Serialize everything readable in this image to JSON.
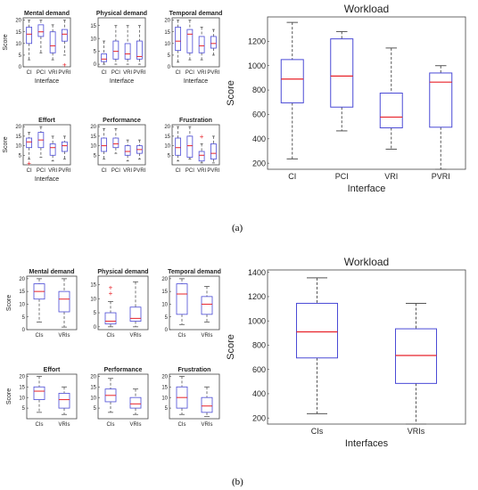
{
  "captions": {
    "a": "(a)",
    "b": "(b)"
  },
  "colors": {
    "box": "#4a4ad6",
    "median": "#e8232a",
    "outlier": "#e8232a",
    "whisker": "#555555",
    "axis": "#444444",
    "text": "#222222"
  },
  "chart_data": [
    {
      "panel": "a",
      "type": "boxplot",
      "title": "Mental demand",
      "categories": [
        "CI",
        "PCI",
        "VRI",
        "PVRI"
      ],
      "xlabel": "Interface",
      "ylabel": "Score",
      "ylim": [
        0,
        21
      ],
      "yticks": [
        0,
        5,
        10,
        15,
        20
      ],
      "boxes": [
        {
          "min": 3,
          "q1": 10,
          "median": 14,
          "q3": 17,
          "max": 20
        },
        {
          "min": 6,
          "q1": 13,
          "median": 15,
          "q3": 18,
          "max": 20
        },
        {
          "min": 3,
          "q1": 6,
          "median": 9,
          "q3": 15,
          "max": 18
        },
        {
          "min": 5,
          "q1": 11,
          "median": 14,
          "q3": 16,
          "max": 20,
          "outliers": [
            1
          ]
        }
      ]
    },
    {
      "panel": "a",
      "type": "boxplot",
      "title": "Physical demand",
      "categories": [
        "CI",
        "PCI",
        "VRI",
        "PVRI"
      ],
      "xlabel": "Interface",
      "ylabel": "",
      "ylim": [
        -1,
        18
      ],
      "yticks": [
        0,
        5,
        10,
        15
      ],
      "boxes": [
        {
          "min": 0,
          "q1": 1,
          "median": 2,
          "q3": 4,
          "max": 9
        },
        {
          "min": 0,
          "q1": 2,
          "median": 5,
          "q3": 9,
          "max": 15
        },
        {
          "min": 0,
          "q1": 2,
          "median": 4,
          "q3": 8,
          "max": 15
        },
        {
          "min": 0,
          "q1": 2,
          "median": 3,
          "q3": 9,
          "max": 15
        }
      ]
    },
    {
      "panel": "a",
      "type": "boxplot",
      "title": "Temporal demand",
      "categories": [
        "CI",
        "PCI",
        "VRI",
        "PVRI"
      ],
      "xlabel": "Interface",
      "ylabel": "",
      "ylim": [
        0,
        21
      ],
      "yticks": [
        0,
        5,
        10,
        15,
        20
      ],
      "boxes": [
        {
          "min": 2,
          "q1": 7,
          "median": 11,
          "q3": 17,
          "max": 20
        },
        {
          "min": 3,
          "q1": 6,
          "median": 14,
          "q3": 16,
          "max": 20
        },
        {
          "min": 3,
          "q1": 6,
          "median": 9,
          "q3": 13,
          "max": 17
        },
        {
          "min": 5,
          "q1": 8,
          "median": 10,
          "q3": 13,
          "max": 16
        }
      ]
    },
    {
      "panel": "a",
      "type": "boxplot",
      "title": "Effort",
      "categories": [
        "CI",
        "PCI",
        "VRI",
        "PVRI"
      ],
      "xlabel": "Interface",
      "ylabel": "Score",
      "ylim": [
        0,
        21
      ],
      "yticks": [
        5,
        10,
        15,
        20
      ],
      "boxes": [
        {
          "min": 3,
          "q1": 9,
          "median": 12,
          "q3": 14,
          "max": 17,
          "outliers": [
            1
          ]
        },
        {
          "min": 4,
          "q1": 9,
          "median": 13,
          "q3": 17,
          "max": 20
        },
        {
          "min": 2,
          "q1": 5,
          "median": 9,
          "q3": 11,
          "max": 15
        },
        {
          "min": 3,
          "q1": 7,
          "median": 10,
          "q3": 12,
          "max": 15
        }
      ]
    },
    {
      "panel": "a",
      "type": "boxplot",
      "title": "Performance",
      "categories": [
        "CI",
        "PCI",
        "VRI",
        "PVRI"
      ],
      "xlabel": "",
      "ylabel": "",
      "ylim": [
        0,
        21
      ],
      "yticks": [
        5,
        10,
        15,
        20
      ],
      "boxes": [
        {
          "min": 3,
          "q1": 7,
          "median": 10,
          "q3": 14,
          "max": 19
        },
        {
          "min": 6,
          "q1": 9,
          "median": 11,
          "q3": 14,
          "max": 19
        },
        {
          "min": 2,
          "q1": 5,
          "median": 7,
          "q3": 10,
          "max": 13
        },
        {
          "min": 3,
          "q1": 6,
          "median": 8,
          "q3": 10,
          "max": 13
        }
      ]
    },
    {
      "panel": "a",
      "type": "boxplot",
      "title": "Frustration",
      "categories": [
        "CI",
        "PCI",
        "VRI",
        "PVRI"
      ],
      "xlabel": "",
      "ylabel": "",
      "ylim": [
        0,
        21
      ],
      "yticks": [
        5,
        10,
        15,
        20
      ],
      "boxes": [
        {
          "min": 2,
          "q1": 5,
          "median": 9,
          "q3": 14,
          "max": 20
        },
        {
          "min": 3,
          "q1": 4,
          "median": 10,
          "q3": 15,
          "max": 20
        },
        {
          "min": 1,
          "q1": 2,
          "median": 5,
          "q3": 7,
          "max": 11,
          "outliers": [
            15
          ]
        },
        {
          "min": 1,
          "q1": 3,
          "median": 6,
          "q3": 11,
          "max": 15
        }
      ]
    },
    {
      "panel": "a",
      "type": "boxplot",
      "title": "Workload",
      "categories": [
        "CI",
        "PCI",
        "VRI",
        "PVRI"
      ],
      "xlabel": "Interface",
      "ylabel": "Score",
      "ylim": [
        150,
        1400
      ],
      "yticks": [
        200,
        400,
        600,
        800,
        1000,
        1200
      ],
      "boxes": [
        {
          "min": 235,
          "q1": 695,
          "median": 890,
          "q3": 1050,
          "max": 1355
        },
        {
          "min": 465,
          "q1": 660,
          "median": 915,
          "q3": 1220,
          "max": 1280
        },
        {
          "min": 315,
          "q1": 490,
          "median": 578,
          "q3": 775,
          "max": 1145
        },
        {
          "min": 150,
          "q1": 495,
          "median": 865,
          "q3": 940,
          "max": 1000
        }
      ]
    },
    {
      "panel": "b",
      "type": "boxplot",
      "title": "Mental demand",
      "categories": [
        "CIs",
        "VRIs"
      ],
      "xlabel": "",
      "ylabel": "Score",
      "ylim": [
        0,
        21
      ],
      "yticks": [
        0,
        5,
        10,
        15,
        20
      ],
      "boxes": [
        {
          "min": 3,
          "q1": 12,
          "median": 15,
          "q3": 18,
          "max": 20
        },
        {
          "min": 1,
          "q1": 7,
          "median": 12,
          "q3": 15,
          "max": 20
        }
      ]
    },
    {
      "panel": "b",
      "type": "boxplot",
      "title": "Physical demand",
      "categories": [
        "CIs",
        "VRIs"
      ],
      "xlabel": "",
      "ylabel": "",
      "ylim": [
        -1,
        18
      ],
      "yticks": [
        0,
        5,
        10,
        15
      ],
      "boxes": [
        {
          "min": 0,
          "q1": 1,
          "median": 2,
          "q3": 5,
          "max": 9,
          "outliers": [
            12,
            14
          ]
        },
        {
          "min": 0,
          "q1": 2,
          "median": 3,
          "q3": 7,
          "max": 16
        }
      ]
    },
    {
      "panel": "b",
      "type": "boxplot",
      "title": "Temporal demand",
      "categories": [
        "CIs",
        "VRIs"
      ],
      "xlabel": "",
      "ylabel": "",
      "ylim": [
        0,
        21
      ],
      "yticks": [
        0,
        5,
        10,
        15,
        20
      ],
      "boxes": [
        {
          "min": 2,
          "q1": 6,
          "median": 14,
          "q3": 18,
          "max": 20
        },
        {
          "min": 3,
          "q1": 6,
          "median": 10,
          "q3": 13,
          "max": 17
        }
      ]
    },
    {
      "panel": "b",
      "type": "boxplot",
      "title": "Effort",
      "categories": [
        "CIs",
        "VRIs"
      ],
      "xlabel": "",
      "ylabel": "Score",
      "ylim": [
        0,
        21
      ],
      "yticks": [
        5,
        10,
        15,
        20
      ],
      "boxes": [
        {
          "min": 3,
          "q1": 9,
          "median": 13,
          "q3": 15,
          "max": 20
        },
        {
          "min": 2,
          "q1": 5,
          "median": 9,
          "q3": 12,
          "max": 15
        }
      ]
    },
    {
      "panel": "b",
      "type": "boxplot",
      "title": "Performance",
      "categories": [
        "CIs",
        "VRIs"
      ],
      "xlabel": "",
      "ylabel": "",
      "ylim": [
        0,
        21
      ],
      "yticks": [
        5,
        10,
        15,
        20
      ],
      "boxes": [
        {
          "min": 3,
          "q1": 8,
          "median": 11,
          "q3": 14,
          "max": 19
        },
        {
          "min": 2,
          "q1": 5,
          "median": 7,
          "q3": 10,
          "max": 14
        }
      ]
    },
    {
      "panel": "b",
      "type": "boxplot",
      "title": "Frustration",
      "categories": [
        "CIs",
        "VRIs"
      ],
      "xlabel": "",
      "ylabel": "",
      "ylim": [
        0,
        21
      ],
      "yticks": [
        5,
        10,
        15,
        20
      ],
      "boxes": [
        {
          "min": 2,
          "q1": 5,
          "median": 10,
          "q3": 15,
          "max": 20
        },
        {
          "min": 1,
          "q1": 3,
          "median": 6,
          "q3": 10,
          "max": 15
        }
      ]
    },
    {
      "panel": "b",
      "type": "boxplot",
      "title": "Workload",
      "categories": [
        "CIs",
        "VRIs"
      ],
      "xlabel": "Interfaces",
      "ylabel": "Score",
      "ylim": [
        150,
        1420
      ],
      "yticks": [
        200,
        400,
        600,
        800,
        1000,
        1200,
        1400
      ],
      "boxes": [
        {
          "min": 235,
          "q1": 695,
          "median": 910,
          "q3": 1145,
          "max": 1355
        },
        {
          "min": 150,
          "q1": 485,
          "median": 715,
          "q3": 935,
          "max": 1145
        }
      ]
    }
  ]
}
